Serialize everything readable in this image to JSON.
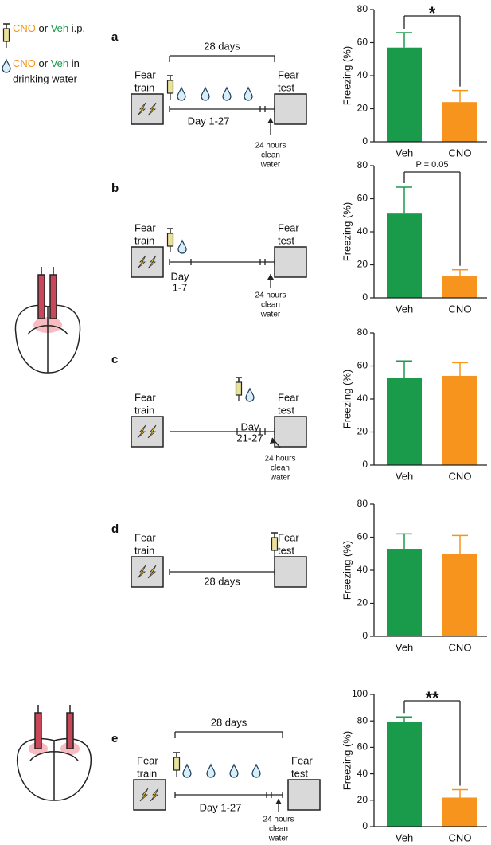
{
  "legend": {
    "ip": [
      "CNO",
      "or",
      "Veh",
      "i.p."
    ],
    "water": [
      "CNO",
      "or",
      "Veh",
      "in",
      "drinking water"
    ]
  },
  "panels": [
    {
      "letter": "a",
      "train": [
        "Fear",
        "train"
      ],
      "test": [
        "Fear",
        "test"
      ],
      "span": "28 days",
      "period": [
        "Day 1-27"
      ],
      "note": [
        "24 hours",
        "clean",
        "water"
      ]
    },
    {
      "letter": "b",
      "train": [
        "Fear",
        "train"
      ],
      "test": [
        "Fear",
        "test"
      ],
      "period": [
        "Day",
        "1-7"
      ],
      "note": [
        "24 hours",
        "clean",
        "water"
      ]
    },
    {
      "letter": "c",
      "train": [
        "Fear",
        "train"
      ],
      "test": [
        "Fear",
        "test"
      ],
      "period": [
        "Day",
        "21-27"
      ],
      "note": [
        "24 hours",
        "clean",
        "water"
      ]
    },
    {
      "letter": "d",
      "train": [
        "Fear",
        "train"
      ],
      "test": [
        "Fear",
        "test"
      ],
      "span": "28 days"
    },
    {
      "letter": "e",
      "train": [
        "Fear",
        "train"
      ],
      "test": [
        "Fear",
        "test"
      ],
      "span": "28 days",
      "period": [
        "Day 1-27"
      ],
      "note": [
        "24 hours",
        "clean",
        "water"
      ]
    }
  ],
  "chart_data": [
    {
      "type": "bar",
      "ylabel": "Freezing (%)",
      "categories": [
        "Veh",
        "CNO"
      ],
      "colors": [
        "#1a9a4b",
        "#f7941d"
      ],
      "values": [
        57,
        24
      ],
      "errors": [
        9,
        7
      ],
      "ylim": [
        0,
        80
      ],
      "yticks": [
        0,
        20,
        40,
        60,
        80
      ],
      "annotation": "*"
    },
    {
      "type": "bar",
      "ylabel": "Freezing (%)",
      "categories": [
        "Veh",
        "CNO"
      ],
      "colors": [
        "#1a9a4b",
        "#f7941d"
      ],
      "values": [
        51,
        13
      ],
      "errors": [
        16,
        4
      ],
      "ylim": [
        0,
        80
      ],
      "yticks": [
        0,
        20,
        40,
        60,
        80
      ],
      "annotation": "P = 0.05"
    },
    {
      "type": "bar",
      "ylabel": "Freezing (%)",
      "categories": [
        "Veh",
        "CNO"
      ],
      "colors": [
        "#1a9a4b",
        "#f7941d"
      ],
      "values": [
        53,
        54
      ],
      "errors": [
        10,
        8
      ],
      "ylim": [
        0,
        80
      ],
      "yticks": [
        0,
        20,
        40,
        60,
        80
      ]
    },
    {
      "type": "bar",
      "ylabel": "Freezing (%)",
      "categories": [
        "Veh",
        "CNO"
      ],
      "colors": [
        "#1a9a4b",
        "#f7941d"
      ],
      "values": [
        53,
        50
      ],
      "errors": [
        9,
        11
      ],
      "ylim": [
        0,
        80
      ],
      "yticks": [
        0,
        20,
        40,
        60,
        80
      ]
    },
    {
      "type": "bar",
      "ylabel": "Freezing (%)",
      "categories": [
        "Veh",
        "CNO"
      ],
      "colors": [
        "#1a9a4b",
        "#f7941d"
      ],
      "values": [
        79,
        22
      ],
      "errors": [
        4,
        6
      ],
      "ylim": [
        0,
        100
      ],
      "yticks": [
        0,
        20,
        40,
        60,
        80,
        100
      ],
      "annotation": "**"
    }
  ]
}
